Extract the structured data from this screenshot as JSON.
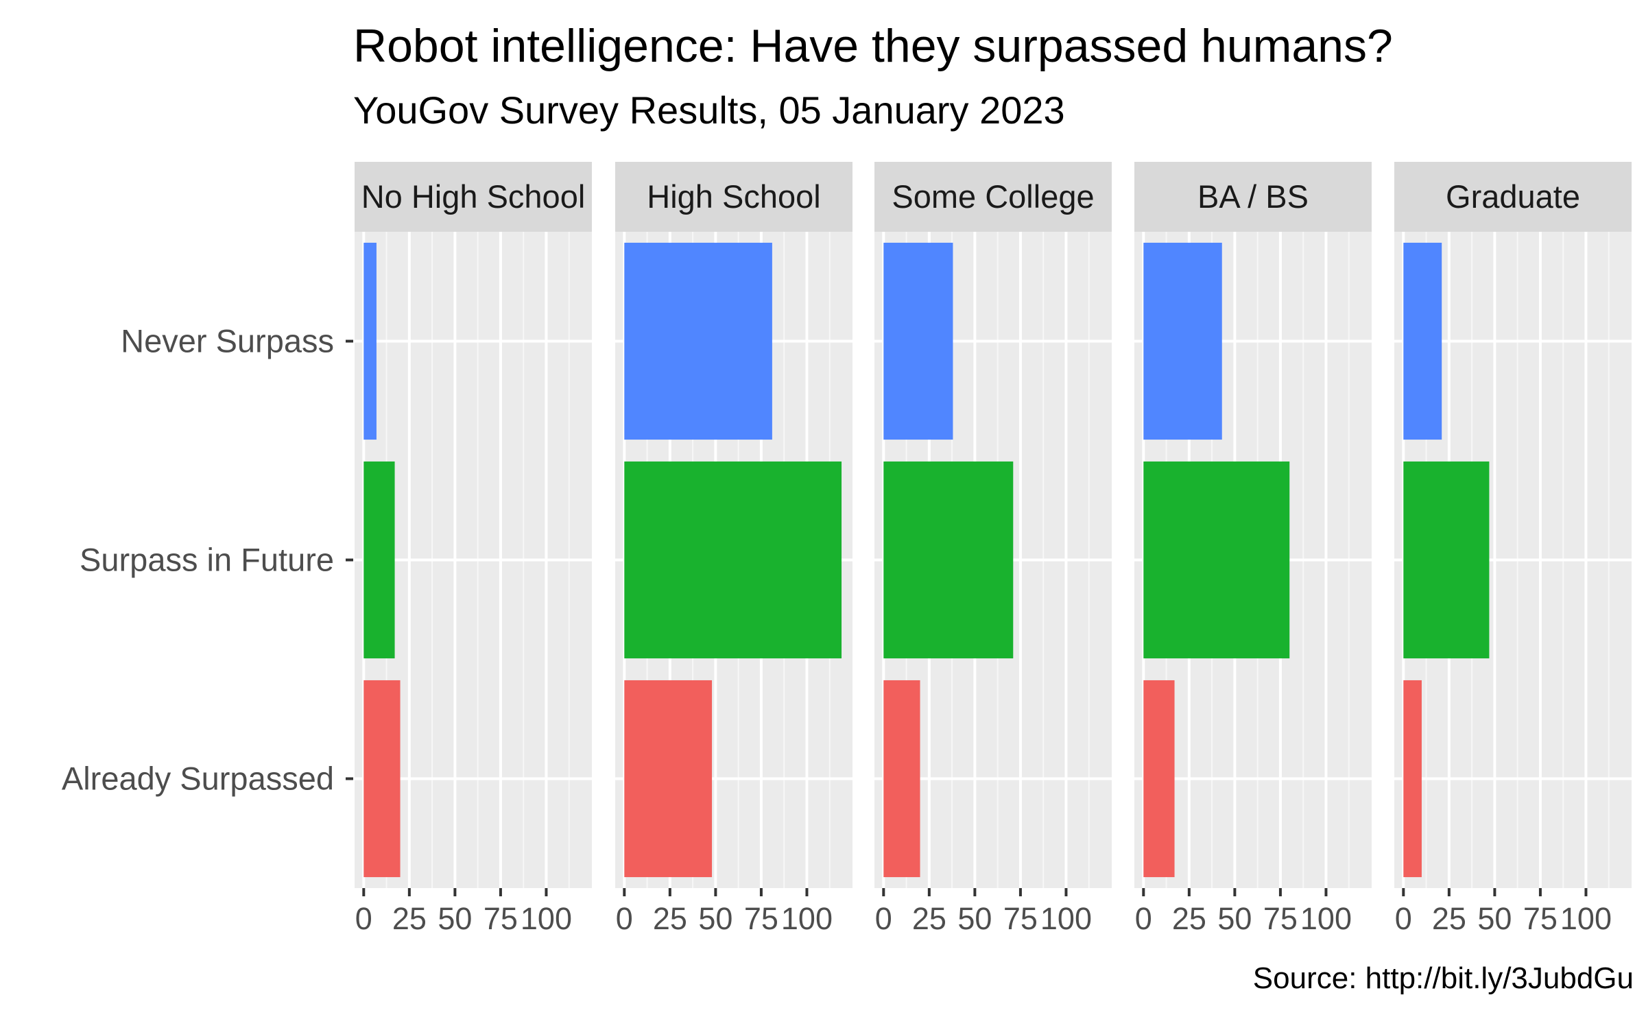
{
  "chart_data": {
    "type": "bar",
    "orientation": "horizontal",
    "title": "Robot intelligence: Have they surpassed humans?",
    "subtitle": "YouGov Survey Results, 05 January 2023",
    "caption": "Source: http://bit.ly/3JubdGu",
    "categories": [
      "Never Surpass",
      "Surpass in Future",
      "Already Surpassed"
    ],
    "category_colors": [
      "#5086ff",
      "#19b22e",
      "#f25f5c"
    ],
    "xlim": [
      -5,
      125
    ],
    "x_ticks": [
      0,
      25,
      50,
      75,
      100
    ],
    "x_tick_labels": [
      "0",
      "25",
      "50",
      "75",
      "100"
    ],
    "grid": true,
    "legend": "none",
    "panels": [
      {
        "label": "No High School",
        "values": [
          7,
          17,
          20
        ]
      },
      {
        "label": "High School",
        "values": [
          81,
          119,
          48
        ]
      },
      {
        "label": "Some College",
        "values": [
          38,
          71,
          20
        ]
      },
      {
        "label": "BA / BS",
        "values": [
          43,
          80,
          17
        ]
      },
      {
        "label": "Graduate",
        "values": [
          21,
          47,
          10
        ]
      }
    ]
  }
}
